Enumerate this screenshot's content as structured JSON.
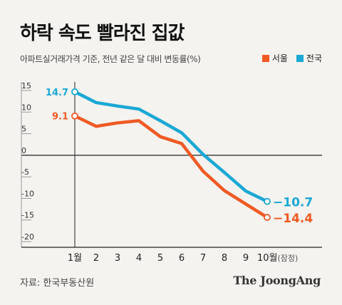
{
  "title": "하락 속도 빨라진 집값",
  "subtitle": "아파트실거래가격 기준, 전년 같은 달 대비 변동률(%)",
  "legend": {
    "seoul": "서울",
    "national": "전국"
  },
  "source": "자료: 한국부동산원",
  "brand": "The JoongAng",
  "colors": {
    "seoul": "#ef5a24",
    "national": "#1ba8d4",
    "axis": "#222222",
    "grid": "#bbbbbb"
  },
  "chart_data": {
    "type": "line",
    "x": [
      "1월",
      "2",
      "3",
      "4",
      "5",
      "6",
      "7",
      "8",
      "9",
      "10월"
    ],
    "x_suffix_last": "(잠정)",
    "ylim": [
      -20,
      15
    ],
    "yticks": [
      "15",
      "10",
      "5",
      "0",
      "-5",
      "-10",
      "-15",
      "-20"
    ],
    "series": [
      {
        "name": "전국",
        "key": "national",
        "values": [
          14.7,
          12.2,
          11.4,
          10.7,
          8.0,
          5.2,
          0.2,
          -4.0,
          -8.3,
          -10.7
        ],
        "labels": {
          "first": "14.7",
          "last": "−10.7"
        }
      },
      {
        "name": "서울",
        "key": "seoul",
        "values": [
          9.1,
          6.7,
          7.5,
          8.0,
          4.3,
          2.7,
          -3.7,
          -8.2,
          -11.3,
          -14.4
        ],
        "labels": {
          "first": "9.1",
          "last": "−14.4"
        }
      }
    ],
    "grid": false,
    "legend_position": "top-right"
  }
}
